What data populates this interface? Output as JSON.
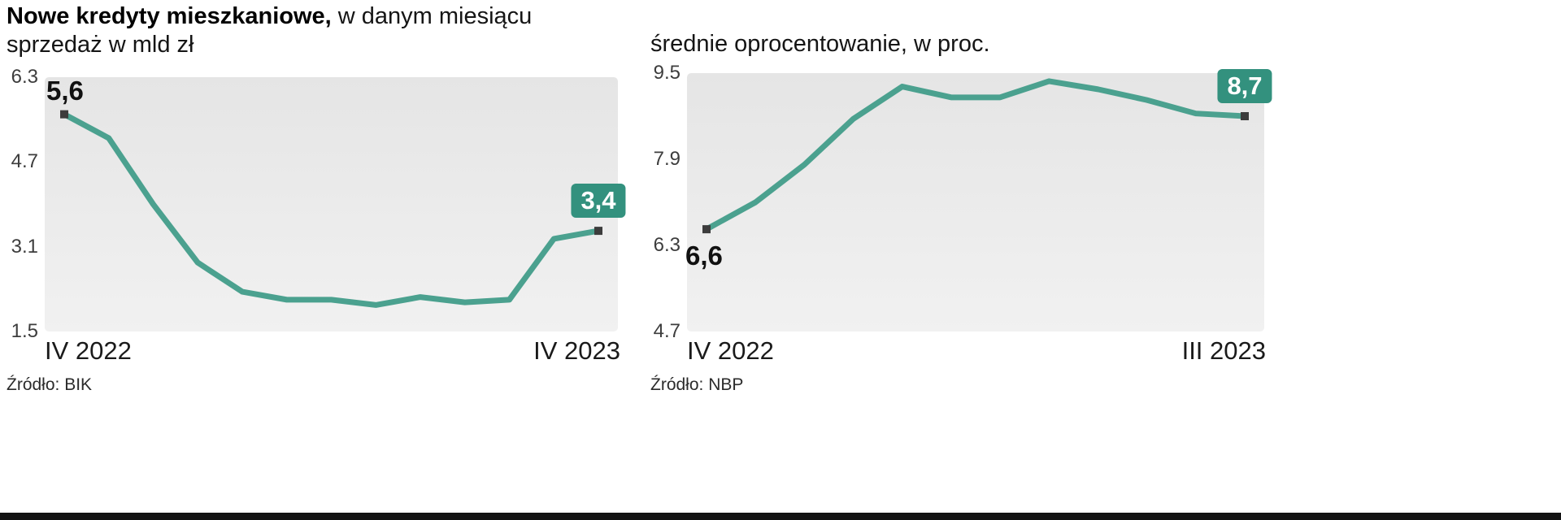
{
  "page": {
    "background": "#ffffff",
    "bottom_bar_color": "#141414"
  },
  "charts": [
    {
      "title_bold": "Nowe kredyty mieszkaniowe,",
      "title_regular": " w danym miesiącu",
      "title_line2": "sprzedaż w mld zł",
      "x_start_label": "IV 2022",
      "x_end_label": "IV 2023",
      "start_value_label": "5,6",
      "end_value_label": "3,4",
      "source": "Źródło: BIK"
    },
    {
      "title_bold": "",
      "title_regular": "średnie oprocentowanie, w proc.",
      "title_line2": "",
      "x_start_label": "IV 2022",
      "x_end_label": "III 2023",
      "start_value_label": "6,6",
      "end_value_label": "8,7",
      "source": "Źródło: NBP"
    }
  ],
  "chart_data": [
    {
      "type": "line",
      "title": "Nowe kredyty mieszkaniowe, w danym miesiącu sprzedaż w mld zł",
      "ylabel": "sprzedaż w mld zł",
      "x_tick_labels": [
        "IV 2022",
        "IV 2023"
      ],
      "y_tick_labels": [
        "6.3",
        "4.7",
        "3.1",
        "1.5"
      ],
      "ylim": [
        1.5,
        6.3
      ],
      "values": [
        5.6,
        5.15,
        3.9,
        2.8,
        2.25,
        2.1,
        2.1,
        2.0,
        2.15,
        2.05,
        2.1,
        3.25,
        3.4
      ],
      "first_point_label": "5,6",
      "last_point_label": "3,4",
      "line_color": "#4ba18f",
      "marker_color": "#3c3c3c",
      "badge_color": "#33917e",
      "grid": false,
      "legend": "none"
    },
    {
      "type": "line",
      "title": "średnie oprocentowanie, w proc.",
      "ylabel": "proc.",
      "x_tick_labels": [
        "IV 2022",
        "III 2023"
      ],
      "y_tick_labels": [
        "9.5",
        "7.9",
        "6.3",
        "4.7"
      ],
      "ylim": [
        4.7,
        9.5
      ],
      "values": [
        6.6,
        7.1,
        7.8,
        8.65,
        9.25,
        9.05,
        9.05,
        9.35,
        9.2,
        9.0,
        8.75,
        8.7
      ],
      "first_point_label": "6,6",
      "last_point_label": "8,7",
      "line_color": "#4ba18f",
      "marker_color": "#3c3c3c",
      "badge_color": "#33917e",
      "grid": false,
      "legend": "none"
    }
  ]
}
